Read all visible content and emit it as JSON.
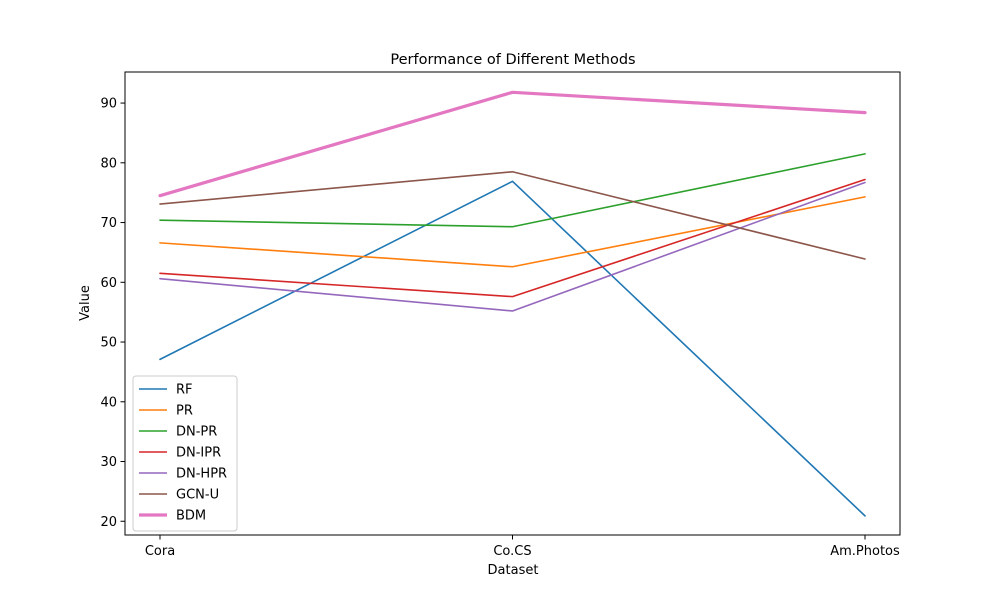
{
  "chart_data": {
    "type": "line",
    "title": "Performance of Different Methods",
    "xlabel": "Dataset",
    "ylabel": "Value",
    "categories": [
      "Cora",
      "Co.CS",
      "Am.Photos"
    ],
    "ylim": [
      17.7,
      95.2
    ],
    "yticks": [
      20,
      30,
      40,
      50,
      60,
      70,
      80,
      90
    ],
    "grid": false,
    "legend_position": "lower-left",
    "series": [
      {
        "name": "RF",
        "values": [
          47.1,
          76.9,
          20.9
        ],
        "color": "#1f77b4",
        "emphasis": false
      },
      {
        "name": "PR",
        "values": [
          66.6,
          62.6,
          74.3
        ],
        "color": "#ff7f0e",
        "emphasis": false
      },
      {
        "name": "DN-PR",
        "values": [
          70.4,
          69.3,
          81.5
        ],
        "color": "#2ca02c",
        "emphasis": false
      },
      {
        "name": "DN-IPR",
        "values": [
          61.5,
          57.6,
          77.2
        ],
        "color": "#d62728",
        "emphasis": false
      },
      {
        "name": "DN-HPR",
        "values": [
          60.6,
          55.2,
          76.7
        ],
        "color": "#9467bd",
        "emphasis": false
      },
      {
        "name": "GCN-U",
        "values": [
          73.1,
          78.5,
          63.9
        ],
        "color": "#8c564b",
        "emphasis": false
      },
      {
        "name": "BDM",
        "values": [
          74.5,
          91.8,
          88.4
        ],
        "color": "#e377c2",
        "emphasis": true
      }
    ]
  }
}
